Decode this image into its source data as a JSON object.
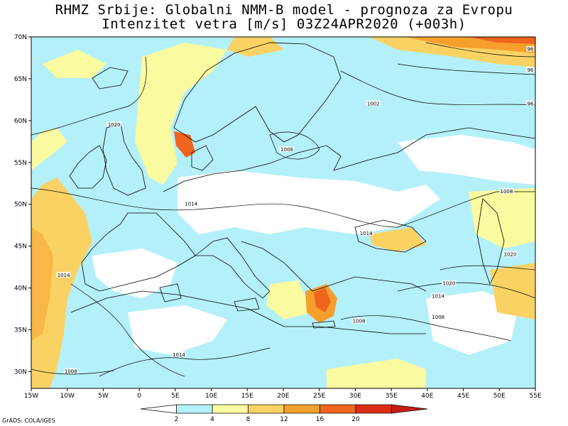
{
  "title": {
    "line1": "RHMZ Srbije: Globalni NMM-B model - prognoza za Evropu",
    "line2": "Intenzitet vetra [m/s] 03Z24APR2020 (+003h)"
  },
  "credit": "GrADS: COLA/IGES",
  "axes": {
    "lat_labels": [
      "70N",
      "65N",
      "60N",
      "55N",
      "50N",
      "45N",
      "40N",
      "35N",
      "30N"
    ],
    "lon_labels": [
      "15W",
      "10W",
      "5W",
      "0",
      "5E",
      "10E",
      "15E",
      "20E",
      "25E",
      "30E",
      "35E",
      "40E",
      "45E",
      "50E",
      "55E"
    ],
    "lat_range": [
      28,
      70
    ],
    "lon_range": [
      -15,
      55
    ]
  },
  "colorbar": {
    "levels": [
      "2",
      "4",
      "8",
      "12",
      "16",
      "20"
    ],
    "colors": [
      "#ffffff",
      "#b4f0fa",
      "#fafaa0",
      "#fad264",
      "#f5a02d",
      "#f0641e",
      "#dc2d14",
      "#c81e14"
    ]
  },
  "colors": {
    "sea_background": "#b4f0fa",
    "calm": "#ffffff",
    "moderate": "#fafaa0",
    "fresh": "#fad264",
    "strong": "#f5a02d",
    "gale": "#f0641e"
  },
  "isobars": [
    {
      "label": "1020",
      "lon": -3.5,
      "lat": 59.5
    },
    {
      "label": "1014",
      "lon": 7.2,
      "lat": 50.0
    },
    {
      "label": "1014",
      "lon": 31.5,
      "lat": 46.5
    },
    {
      "label": "1008",
      "lon": 20.5,
      "lat": 56.5
    },
    {
      "label": "1002",
      "lon": 32.5,
      "lat": 62.0
    },
    {
      "label": "1008",
      "lon": 51.0,
      "lat": 51.5
    },
    {
      "label": "1020",
      "lon": 51.5,
      "lat": 44.0
    },
    {
      "label": "1020",
      "lon": 43.0,
      "lat": 40.5
    },
    {
      "label": "1014",
      "lon": 41.5,
      "lat": 39.0
    },
    {
      "label": "1008",
      "lon": 30.5,
      "lat": 36.0
    },
    {
      "label": "1008",
      "lon": 41.5,
      "lat": 36.5
    },
    {
      "label": "1014",
      "lon": -10.5,
      "lat": 41.5
    },
    {
      "label": "1014",
      "lon": 5.5,
      "lat": 32.0
    },
    {
      "label": "1008",
      "lon": -9.5,
      "lat": 30.0
    },
    {
      "label": "96",
      "lon": 54.3,
      "lat": 68.5
    },
    {
      "label": "96",
      "lon": 54.3,
      "lat": 66.0
    },
    {
      "label": "96",
      "lon": 54.3,
      "lat": 62.0
    }
  ]
}
